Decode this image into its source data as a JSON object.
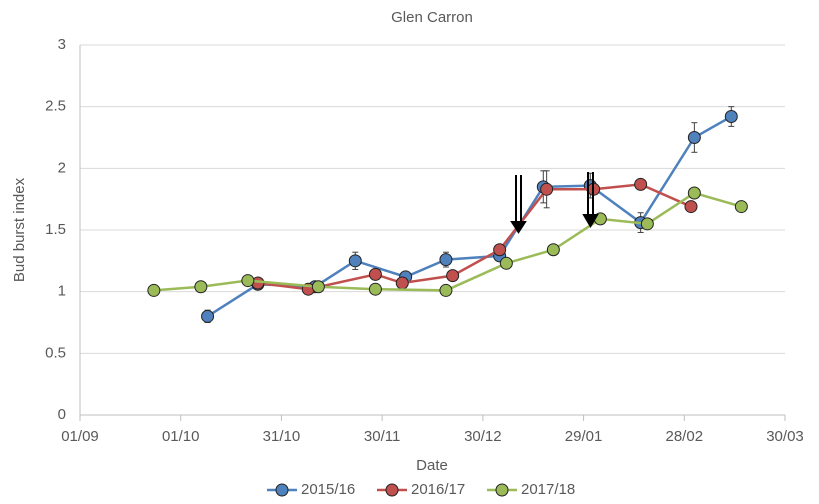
{
  "chart_data": {
    "type": "line",
    "title": "Glen Carron",
    "x_label": "Date",
    "y_label": "Bud burst index",
    "xlim": [
      0,
      210
    ],
    "xticks": [
      {
        "value": 0,
        "label": "01/09"
      },
      {
        "value": 30,
        "label": "01/10"
      },
      {
        "value": 60,
        "label": "31/10"
      },
      {
        "value": 90,
        "label": "30/11"
      },
      {
        "value": 120,
        "label": "30/12"
      },
      {
        "value": 150,
        "label": "29/01"
      },
      {
        "value": 180,
        "label": "28/02"
      },
      {
        "value": 210,
        "label": "30/03"
      }
    ],
    "ylim": [
      0,
      3
    ],
    "yticks": [
      0,
      0.5,
      1,
      1.5,
      2,
      2.5,
      3
    ],
    "grid": true,
    "legend": "bottom",
    "series": [
      {
        "name": "2015/16",
        "color": "#4f81bd",
        "x": [
          38,
          53,
          70,
          82,
          97,
          109,
          125,
          138,
          152,
          167,
          183,
          194
        ],
        "values": [
          0.8,
          1.06,
          1.04,
          1.25,
          1.12,
          1.26,
          1.29,
          1.85,
          1.86,
          1.56,
          2.25,
          2.42
        ],
        "errors": [
          0.05,
          0.03,
          0.03,
          0.07,
          0.04,
          0.06,
          0.04,
          0.13,
          0.1,
          0.08,
          0.12,
          0.08
        ]
      },
      {
        "name": "2016/17",
        "color": "#c0504d",
        "x": [
          53,
          68,
          88,
          96,
          111,
          125,
          139,
          153,
          167,
          182
        ],
        "values": [
          1.07,
          1.02,
          1.14,
          1.07,
          1.13,
          1.34,
          1.83,
          1.83,
          1.87,
          1.69
        ],
        "errors": [
          0.03,
          0.03,
          0.03,
          0.03,
          0.03,
          0.03,
          0.15,
          0.03,
          0.03,
          0.03
        ]
      },
      {
        "name": "2017/18",
        "color": "#9bbb59",
        "x": [
          22,
          36,
          50,
          71,
          88,
          109,
          127,
          141,
          155,
          169,
          183,
          197
        ],
        "values": [
          1.01,
          1.04,
          1.09,
          1.04,
          1.02,
          1.01,
          1.23,
          1.34,
          1.59,
          1.55,
          1.8,
          1.69
        ]
      }
    ]
  }
}
